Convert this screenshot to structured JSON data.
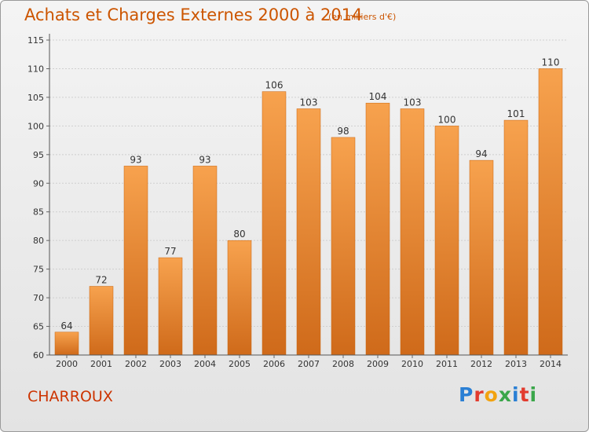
{
  "title": "Achats et Charges Externes 2000 à 2014",
  "unit": "(en milliers d'€)",
  "commune": "CHARROUX",
  "logo": {
    "letters": [
      "P",
      "r",
      "o",
      "x",
      "i",
      "t",
      "i"
    ]
  },
  "colors": {
    "bar_top": "#f7a24e",
    "bar_bottom": "#cf6a1a",
    "text_accent": "#cc5500"
  },
  "chart_data": {
    "type": "bar",
    "categories": [
      "2000",
      "2001",
      "2002",
      "2003",
      "2004",
      "2005",
      "2006",
      "2007",
      "2008",
      "2009",
      "2010",
      "2011",
      "2012",
      "2013",
      "2014"
    ],
    "values": [
      64,
      72,
      93,
      77,
      93,
      80,
      106,
      103,
      98,
      104,
      103,
      100,
      94,
      101,
      110
    ],
    "ylim": [
      60,
      115
    ],
    "yticks": [
      60,
      65,
      70,
      75,
      80,
      85,
      90,
      95,
      100,
      105,
      110,
      115
    ],
    "grid": true,
    "legend": "none"
  }
}
